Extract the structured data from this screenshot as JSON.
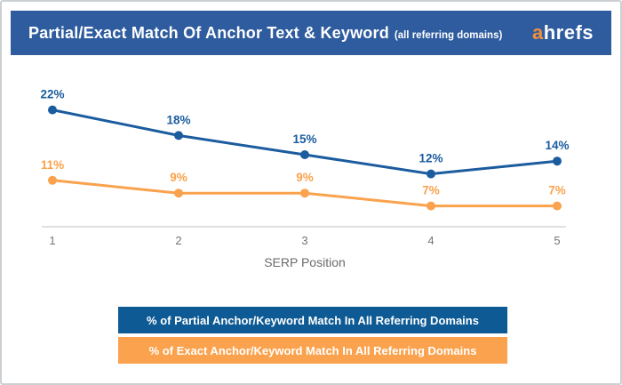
{
  "header": {
    "title": "Partial/Exact Match Of Anchor Text & Keyword",
    "subtitle": "(all referring domains)",
    "logo_prefix": "a",
    "logo_rest": "hrefs"
  },
  "chart_data": {
    "type": "line",
    "x": [
      1,
      2,
      3,
      4,
      5
    ],
    "x_tick_labels": [
      "1",
      "2",
      "3",
      "4",
      "5"
    ],
    "xlabel": "SERP Position",
    "series": [
      {
        "name": "% of Partial Anchor/Keyword Match In All Referring Domains",
        "values": [
          22,
          18,
          15,
          12,
          14
        ],
        "point_labels": [
          "22%",
          "18%",
          "15%",
          "12%",
          "14%"
        ],
        "color": "#1b5c9e"
      },
      {
        "name": "% of Exact Anchor/Keyword Match In All Referring Domains",
        "values": [
          11,
          9,
          9,
          7,
          7
        ],
        "point_labels": [
          "11%",
          "9%",
          "9%",
          "7%",
          "7%"
        ],
        "color": "#faa24d"
      }
    ],
    "ylim": [
      0,
      25
    ],
    "grid": false,
    "legend_position": "bottom",
    "marker": "circle",
    "data_labels": true
  },
  "legend": {
    "items": [
      {
        "label": "% of Partial Anchor/Keyword Match In All Referring Domains",
        "color": "#0d5a94"
      },
      {
        "label": "% of Exact Anchor/Keyword Match In All Referring Domains",
        "color": "#faa24d"
      }
    ]
  },
  "colors": {
    "header_background": "#2e5c9e",
    "logo_accent": "#f0903a",
    "axis_line": "#e0e0e0",
    "tick_label": "#757575",
    "axis_title": "#6b6b6b",
    "card_border": "#ccd0d4"
  }
}
